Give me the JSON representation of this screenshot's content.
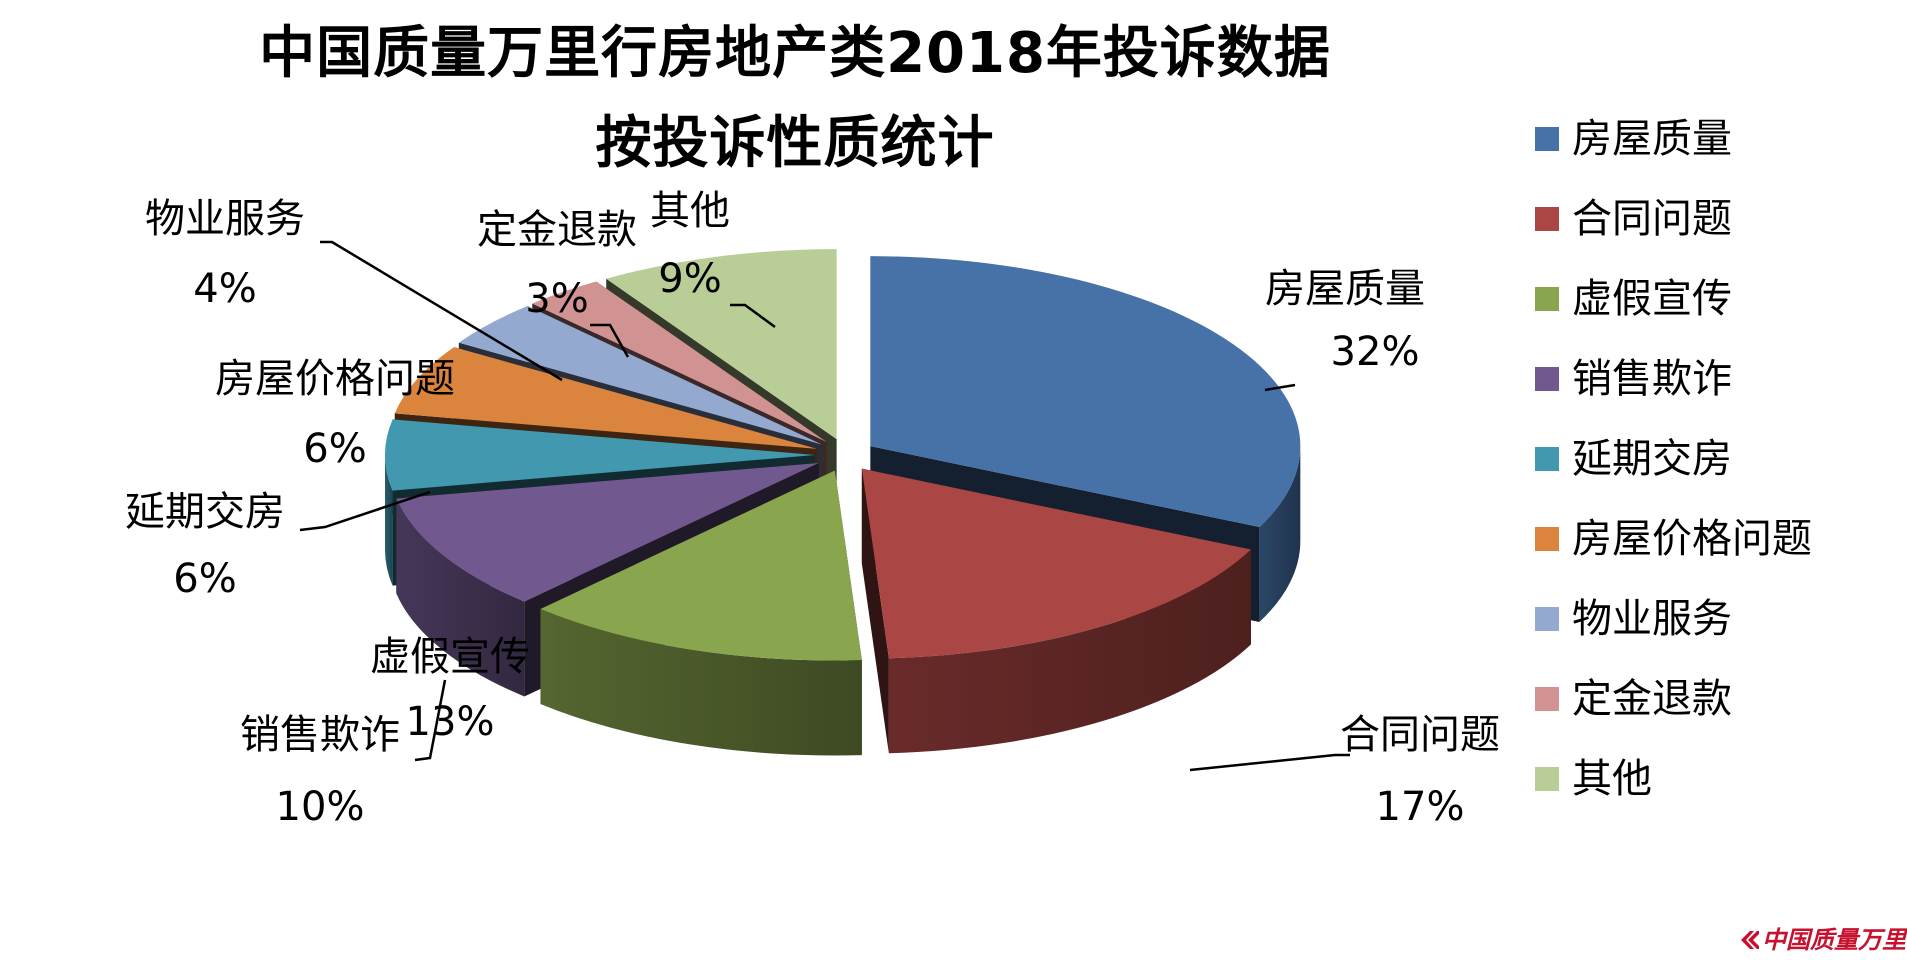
{
  "title_line1": "中国质量万里行房地产类2018年投诉数据",
  "title_line2": "按投诉性质统计",
  "brand": "中国质量万里行",
  "chart_data": {
    "type": "pie",
    "subtype": "3d-exploded",
    "title": "中国质量万里行房地产类2018年投诉数据 按投诉性质统计",
    "legend_position": "right",
    "categories": [
      "房屋质量",
      "合同问题",
      "虚假宣传",
      "销售欺诈",
      "延期交房",
      "房屋价格问题",
      "物业服务",
      "定金退款",
      "其他"
    ],
    "values": [
      32,
      17,
      13,
      10,
      6,
      6,
      4,
      3,
      9
    ],
    "labels": [
      "32%",
      "17%",
      "13%",
      "10%",
      "6%",
      "6%",
      "4%",
      "3%",
      "9%"
    ],
    "colors": [
      "#4672A8",
      "#AA4643",
      "#89A54E",
      "#71588F",
      "#4198AF",
      "#DB843D",
      "#93A9CF",
      "#D19392",
      "#B9CD96"
    ]
  }
}
